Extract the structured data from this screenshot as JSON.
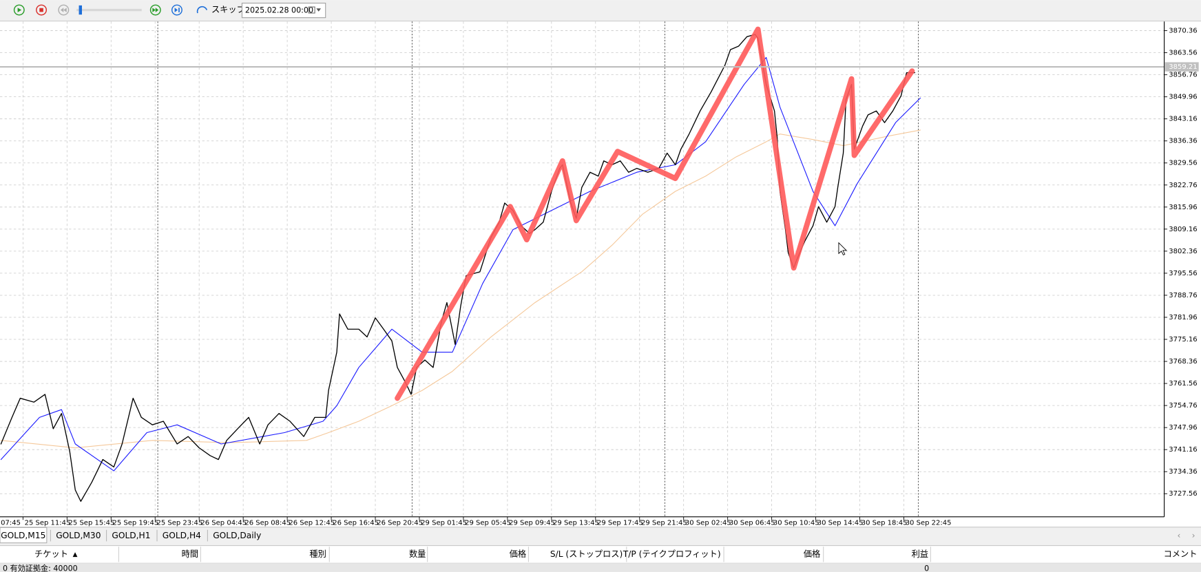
{
  "toolbar": {
    "skip_label": "スキップ",
    "date": "2025.02.28 00:00"
  },
  "chart_data": {
    "type": "line",
    "xlim": [
      -8.35,
      414.6
    ],
    "ylim": [
      3720.43,
      3873.19
    ],
    "xticks": [
      {
        "value": -16,
        "label": "07:45"
      },
      {
        "value": 0,
        "label": "25 Sep 11:45"
      },
      {
        "value": 16,
        "label": "25 Sep 15:45"
      },
      {
        "value": 32,
        "label": "25 Sep 19:45"
      },
      {
        "value": 48,
        "label": "25 Sep 23:45"
      },
      {
        "value": 64,
        "label": "26 Sep 04:45"
      },
      {
        "value": 80,
        "label": "26 Sep 08:45"
      },
      {
        "value": 96,
        "label": "26 Sep 12:45"
      },
      {
        "value": 112,
        "label": "26 Sep 16:45"
      },
      {
        "value": 128,
        "label": "26 Sep 20:45"
      },
      {
        "value": 144,
        "label": "29 Sep 01:45"
      },
      {
        "value": 160,
        "label": "29 Sep 05:45"
      },
      {
        "value": 176,
        "label": "29 Sep 09:45"
      },
      {
        "value": 192,
        "label": "29 Sep 13:45"
      },
      {
        "value": 208,
        "label": "29 Sep 17:45"
      },
      {
        "value": 224,
        "label": "29 Sep 21:45"
      },
      {
        "value": 240,
        "label": "30 Sep 02:45"
      },
      {
        "value": 256,
        "label": "30 Sep 06:45"
      },
      {
        "value": 272,
        "label": "30 Sep 10:45"
      },
      {
        "value": 288,
        "label": "30 Sep 14:45"
      },
      {
        "value": 304,
        "label": "30 Sep 18:45"
      },
      {
        "value": 320,
        "label": "30 Sep 22:45"
      }
    ],
    "yticks": [
      3870.36,
      3863.56,
      3856.76,
      3849.96,
      3843.16,
      3836.36,
      3829.56,
      3822.76,
      3815.96,
      3809.16,
      3802.36,
      3795.56,
      3788.76,
      3781.96,
      3775.16,
      3768.36,
      3761.56,
      3754.76,
      3747.96,
      3741.16,
      3734.36,
      3727.56
    ],
    "grid": true,
    "current_price": 3859.21,
    "series": [
      {
        "color": "#f5c89a",
        "width": 1,
        "x": [
          -8,
          19,
          47,
          75,
          103,
          111,
          122,
          134,
          145,
          156,
          170,
          186,
          203,
          214,
          225,
          237,
          248,
          259,
          270,
          275,
          287,
          298,
          314,
          326
        ],
        "values": [
          3744.0,
          3741.7,
          3744.0,
          3743.3,
          3744.0,
          3746.4,
          3749.9,
          3754.7,
          3759.4,
          3765.3,
          3775.9,
          3786.5,
          3796.0,
          3804.2,
          3813.7,
          3820.8,
          3825.5,
          3831.4,
          3836.1,
          3838.5,
          3836.8,
          3834.9,
          3837.8,
          3839.7
        ]
      },
      {
        "color": "#1a1aff",
        "width": 1,
        "x": [
          -8,
          6,
          14,
          19,
          33,
          45,
          56,
          72,
          95,
          109,
          114,
          122,
          134,
          145,
          156,
          167,
          178,
          192,
          206,
          223,
          237,
          248,
          262,
          270,
          275,
          287,
          295,
          303,
          317,
          326
        ],
        "values": [
          3738.1,
          3751.1,
          3753.5,
          3742.9,
          3734.6,
          3746.4,
          3748.8,
          3742.9,
          3746.4,
          3749.9,
          3754.7,
          3766.5,
          3778.3,
          3771.2,
          3771.2,
          3792.4,
          3809.0,
          3814.9,
          3820.8,
          3826.7,
          3829.0,
          3836.1,
          3853.8,
          3862.1,
          3846.8,
          3820.8,
          3810.2,
          3823.1,
          3842.0,
          3849.6
        ]
      },
      {
        "color": "#000000",
        "width": 1.2,
        "x": [
          -8,
          -4,
          -1,
          4,
          8,
          11,
          14,
          17,
          19,
          21,
          25,
          29,
          33,
          36,
          40,
          43,
          47,
          51,
          56,
          60,
          64,
          68,
          71,
          74,
          78,
          82,
          86,
          89,
          93,
          97,
          102,
          106,
          110,
          111,
          114,
          115,
          118,
          122,
          125,
          128,
          131,
          134,
          136,
          139,
          141,
          143,
          146,
          149,
          152,
          154,
          157,
          159,
          161,
          166,
          170,
          173,
          175,
          178,
          181,
          184,
          186,
          189,
          192,
          195,
          196,
          199,
          201,
          203,
          206,
          209,
          211,
          214,
          217,
          220,
          223,
          227,
          231,
          234,
          237,
          239,
          242,
          246,
          250,
          255,
          257,
          260,
          263,
          266,
          267,
          270,
          273,
          274,
          275,
          277,
          278,
          280,
          281,
          284,
          287,
          289,
          292,
          295,
          296,
          298,
          299,
          301,
          302,
          305,
          307,
          310,
          313,
          316,
          319,
          321,
          324
        ],
        "values": [
          3742.9,
          3751.1,
          3757.0,
          3755.8,
          3758.2,
          3747.6,
          3752.3,
          3740.5,
          3728.7,
          3725.2,
          3731.1,
          3738.1,
          3735.8,
          3742.9,
          3757.0,
          3751.1,
          3748.8,
          3749.9,
          3742.9,
          3745.2,
          3741.7,
          3739.3,
          3738.1,
          3744.0,
          3747.6,
          3751.1,
          3742.9,
          3748.8,
          3752.3,
          3749.9,
          3745.2,
          3751.1,
          3751.1,
          3759.4,
          3771.2,
          3783.0,
          3778.3,
          3778.3,
          3775.9,
          3781.8,
          3778.3,
          3774.7,
          3766.5,
          3761.8,
          3758.2,
          3766.5,
          3768.8,
          3766.5,
          3780.6,
          3786.5,
          3773.6,
          3785.4,
          3794.8,
          3796.0,
          3806.6,
          3811.3,
          3817.2,
          3814.9,
          3810.2,
          3807.8,
          3809.0,
          3811.3,
          3820.8,
          3827.9,
          3829.0,
          3817.2,
          3812.5,
          3822.0,
          3826.7,
          3825.5,
          3830.2,
          3829.0,
          3830.2,
          3826.7,
          3827.9,
          3826.7,
          3827.9,
          3832.6,
          3829.0,
          3833.8,
          3838.5,
          3845.6,
          3851.5,
          3859.7,
          3864.5,
          3865.6,
          3868.5,
          3869.2,
          3868.0,
          3853.8,
          3845.6,
          3837.3,
          3820.8,
          3809.0,
          3801.9,
          3797.2,
          3799.5,
          3805.4,
          3810.2,
          3816.1,
          3811.3,
          3816.1,
          3822.0,
          3832.6,
          3849.1,
          3853.8,
          3833.8,
          3840.9,
          3844.4,
          3845.6,
          3842.0,
          3845.6,
          3850.3,
          3857.4,
          3857.4
        ]
      },
      {
        "color": "#ff5a5a",
        "width": 7,
        "x": [
          136,
          177,
          183,
          196,
          201,
          216,
          237,
          267,
          280,
          301,
          302,
          323
        ],
        "values": [
          3757.0,
          3816.1,
          3805.9,
          3830.2,
          3811.8,
          3833.1,
          3824.8,
          3870.8,
          3797.2,
          3855.5,
          3831.9,
          3857.9
        ]
      }
    ]
  },
  "tabs": [
    "GOLD,M15",
    "GOLD,M30",
    "GOLD,H1",
    "GOLD,H4",
    "GOLD,Daily"
  ],
  "table": {
    "columns": [
      "チケット",
      "時間",
      "種別",
      "数量",
      "価格",
      "S/L (ストップロス)",
      "T/P (テイクプロフィット)",
      "価格",
      "利益",
      "コメント"
    ],
    "sort_indicator": "▲",
    "status": ": 0  有効証拠金: 40000",
    "profit": 0
  }
}
